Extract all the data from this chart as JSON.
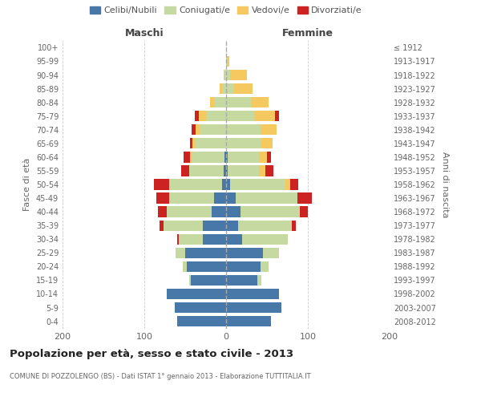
{
  "age_groups": [
    "0-4",
    "5-9",
    "10-14",
    "15-19",
    "20-24",
    "25-29",
    "30-34",
    "35-39",
    "40-44",
    "45-49",
    "50-54",
    "55-59",
    "60-64",
    "65-69",
    "70-74",
    "75-79",
    "80-84",
    "85-89",
    "90-94",
    "95-99",
    "100+"
  ],
  "birth_years": [
    "2008-2012",
    "2003-2007",
    "1998-2002",
    "1993-1997",
    "1988-1992",
    "1983-1987",
    "1978-1982",
    "1973-1977",
    "1968-1972",
    "1963-1967",
    "1958-1962",
    "1953-1957",
    "1948-1952",
    "1943-1947",
    "1938-1942",
    "1933-1937",
    "1928-1932",
    "1923-1927",
    "1918-1922",
    "1913-1917",
    "≤ 1912"
  ],
  "males": {
    "celibi": [
      60,
      63,
      73,
      43,
      48,
      50,
      28,
      28,
      18,
      15,
      5,
      3,
      2,
      0,
      0,
      0,
      0,
      0,
      0,
      0,
      0
    ],
    "coniugati": [
      0,
      0,
      0,
      2,
      5,
      12,
      30,
      48,
      55,
      55,
      65,
      42,
      40,
      38,
      32,
      25,
      15,
      5,
      3,
      0,
      0
    ],
    "vedovi": [
      0,
      0,
      0,
      0,
      0,
      0,
      0,
      0,
      0,
      0,
      0,
      0,
      2,
      3,
      5,
      8,
      5,
      3,
      0,
      0,
      0
    ],
    "divorziati": [
      0,
      0,
      0,
      0,
      0,
      0,
      2,
      5,
      10,
      15,
      18,
      10,
      8,
      3,
      5,
      5,
      0,
      0,
      0,
      0,
      0
    ]
  },
  "females": {
    "nubili": [
      55,
      68,
      65,
      38,
      42,
      45,
      20,
      15,
      18,
      12,
      5,
      2,
      2,
      0,
      0,
      0,
      0,
      0,
      0,
      0,
      0
    ],
    "coniugate": [
      0,
      0,
      0,
      5,
      10,
      20,
      55,
      65,
      72,
      75,
      68,
      38,
      38,
      42,
      42,
      35,
      30,
      10,
      5,
      2,
      0
    ],
    "vedove": [
      0,
      0,
      0,
      0,
      0,
      0,
      0,
      0,
      0,
      0,
      5,
      8,
      10,
      15,
      20,
      25,
      22,
      22,
      20,
      2,
      0
    ],
    "divorziate": [
      0,
      0,
      0,
      0,
      0,
      0,
      0,
      5,
      10,
      18,
      10,
      10,
      5,
      0,
      0,
      5,
      0,
      0,
      0,
      0,
      0
    ]
  },
  "colors": {
    "celibi": "#4878a8",
    "coniugati": "#c5d9a0",
    "vedovi": "#f5c860",
    "divorziati": "#cc2222"
  },
  "xlim": 200,
  "title": "Popolazione per età, sesso e stato civile - 2013",
  "subtitle": "COMUNE DI POZZOLENGO (BS) - Dati ISTAT 1° gennaio 2013 - Elaborazione TUTTITALIA.IT",
  "ylabel_left": "Fasce di età",
  "ylabel_right": "Anni di nascita",
  "xlabel_left": "Maschi",
  "xlabel_right": "Femmine"
}
